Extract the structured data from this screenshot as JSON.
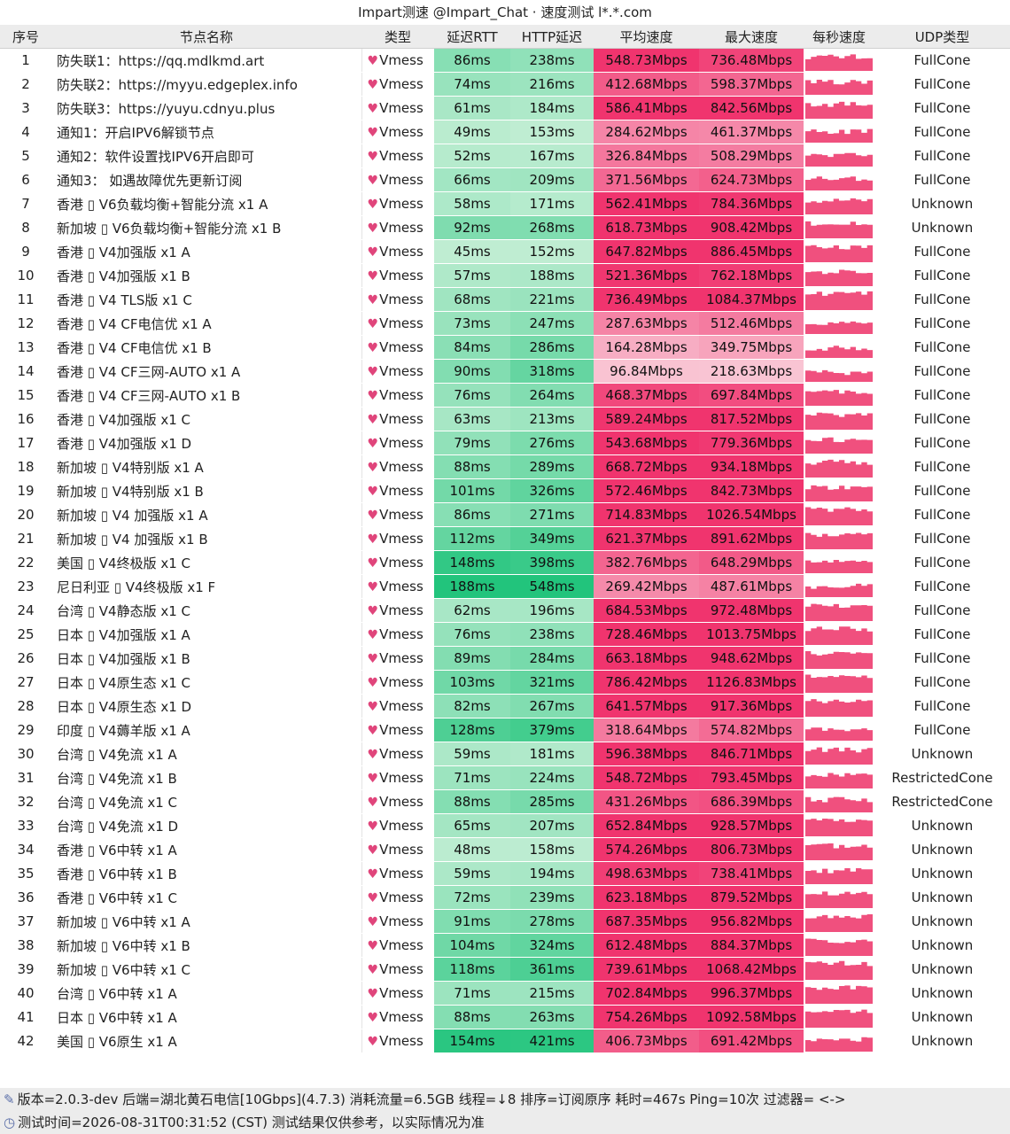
{
  "title": "Impart测速 @Impart_Chat · 速度测试 l*.*.com",
  "headers": [
    "序号",
    "节点名称",
    "类型",
    "延迟RTT",
    "HTTP延迟",
    "平均速度",
    "最大速度",
    "每秒速度",
    "UDP类型"
  ],
  "rows": [
    {
      "idx": "1",
      "name": "防失联1：https://qq.mdlkmd.art",
      "type": "Vmess",
      "rtt": "86ms",
      "http": "238ms",
      "avg": "548.73Mbps",
      "max": "736.48Mbps",
      "nat": "FullCone"
    },
    {
      "idx": "2",
      "name": "防失联2：https://myyu.edgeplex.info",
      "type": "Vmess",
      "rtt": "74ms",
      "http": "216ms",
      "avg": "412.68Mbps",
      "max": "598.37Mbps",
      "nat": "FullCone"
    },
    {
      "idx": "3",
      "name": "防失联3：https://yuyu.cdnyu.plus",
      "type": "Vmess",
      "rtt": "61ms",
      "http": "184ms",
      "avg": "586.41Mbps",
      "max": "842.56Mbps",
      "nat": "FullCone"
    },
    {
      "idx": "4",
      "name": "通知1：开启IPV6解锁节点",
      "type": "Vmess",
      "rtt": "49ms",
      "http": "153ms",
      "avg": "284.62Mbps",
      "max": "461.37Mbps",
      "nat": "FullCone"
    },
    {
      "idx": "5",
      "name": "通知2：软件设置找IPV6开启即可",
      "type": "Vmess",
      "rtt": "52ms",
      "http": "167ms",
      "avg": "326.84Mbps",
      "max": "508.29Mbps",
      "nat": "FullCone"
    },
    {
      "idx": "6",
      "name": "通知3： 如遇故障优先更新订阅",
      "type": "Vmess",
      "rtt": "66ms",
      "http": "209ms",
      "avg": "371.56Mbps",
      "max": "624.73Mbps",
      "nat": "FullCone"
    },
    {
      "idx": "7",
      "name": "香港 ▯ V6负载均衡+智能分流 x1 A",
      "type": "Vmess",
      "rtt": "58ms",
      "http": "171ms",
      "avg": "562.41Mbps",
      "max": "784.36Mbps",
      "nat": "Unknown"
    },
    {
      "idx": "8",
      "name": "新加坡 ▯ V6负载均衡+智能分流 x1 B",
      "type": "Vmess",
      "rtt": "92ms",
      "http": "268ms",
      "avg": "618.73Mbps",
      "max": "908.42Mbps",
      "nat": "Unknown"
    },
    {
      "idx": "9",
      "name": "香港 ▯ V4加强版 x1 A",
      "type": "Vmess",
      "rtt": "45ms",
      "http": "152ms",
      "avg": "647.82Mbps",
      "max": "886.45Mbps",
      "nat": "FullCone"
    },
    {
      "idx": "10",
      "name": "香港 ▯ V4加强版 x1 B",
      "type": "Vmess",
      "rtt": "57ms",
      "http": "188ms",
      "avg": "521.36Mbps",
      "max": "762.18Mbps",
      "nat": "FullCone"
    },
    {
      "idx": "11",
      "name": "香港 ▯ V4 TLS版 x1 C",
      "type": "Vmess",
      "rtt": "68ms",
      "http": "221ms",
      "avg": "736.49Mbps",
      "max": "1084.37Mbps",
      "nat": "FullCone"
    },
    {
      "idx": "12",
      "name": "香港 ▯ V4 CF电信优 x1 A",
      "type": "Vmess",
      "rtt": "73ms",
      "http": "247ms",
      "avg": "287.63Mbps",
      "max": "512.46Mbps",
      "nat": "FullCone"
    },
    {
      "idx": "13",
      "name": "香港 ▯ V4 CF电信优 x1 B",
      "type": "Vmess",
      "rtt": "84ms",
      "http": "286ms",
      "avg": "164.28Mbps",
      "max": "349.75Mbps",
      "nat": "FullCone"
    },
    {
      "idx": "14",
      "name": "香港 ▯ V4 CF三网-AUTO x1 A",
      "type": "Vmess",
      "rtt": "90ms",
      "http": "318ms",
      "avg": "96.84Mbps",
      "max": "218.63Mbps",
      "nat": "FullCone"
    },
    {
      "idx": "15",
      "name": "香港 ▯ V4 CF三网-AUTO x1 B",
      "type": "Vmess",
      "rtt": "76ms",
      "http": "264ms",
      "avg": "468.37Mbps",
      "max": "697.84Mbps",
      "nat": "FullCone"
    },
    {
      "idx": "16",
      "name": "香港 ▯ V4加强版 x1 C",
      "type": "Vmess",
      "rtt": "63ms",
      "http": "213ms",
      "avg": "589.24Mbps",
      "max": "817.52Mbps",
      "nat": "FullCone"
    },
    {
      "idx": "17",
      "name": "香港 ▯ V4加强版 x1 D",
      "type": "Vmess",
      "rtt": "79ms",
      "http": "276ms",
      "avg": "543.68Mbps",
      "max": "779.36Mbps",
      "nat": "FullCone"
    },
    {
      "idx": "18",
      "name": "新加坡 ▯ V4特别版 x1 A",
      "type": "Vmess",
      "rtt": "88ms",
      "http": "289ms",
      "avg": "668.72Mbps",
      "max": "934.18Mbps",
      "nat": "FullCone"
    },
    {
      "idx": "19",
      "name": "新加坡 ▯ V4特别版 x1 B",
      "type": "Vmess",
      "rtt": "101ms",
      "http": "326ms",
      "avg": "572.46Mbps",
      "max": "842.73Mbps",
      "nat": "FullCone"
    },
    {
      "idx": "20",
      "name": "新加坡 ▯ V4 加强版 x1 A",
      "type": "Vmess",
      "rtt": "86ms",
      "http": "271ms",
      "avg": "714.83Mbps",
      "max": "1026.54Mbps",
      "nat": "FullCone"
    },
    {
      "idx": "21",
      "name": "新加坡 ▯ V4 加强版 x1 B",
      "type": "Vmess",
      "rtt": "112ms",
      "http": "349ms",
      "avg": "621.37Mbps",
      "max": "891.62Mbps",
      "nat": "FullCone"
    },
    {
      "idx": "22",
      "name": "美国 ▯ V4终极版 x1 C",
      "type": "Vmess",
      "rtt": "148ms",
      "http": "398ms",
      "avg": "382.76Mbps",
      "max": "648.29Mbps",
      "nat": "FullCone"
    },
    {
      "idx": "23",
      "name": "尼日利亚 ▯ V4终极版 x1 F",
      "type": "Vmess",
      "rtt": "188ms",
      "http": "548ms",
      "avg": "269.42Mbps",
      "max": "487.61Mbps",
      "nat": "FullCone"
    },
    {
      "idx": "24",
      "name": "台湾 ▯ V4静态版 x1 C",
      "type": "Vmess",
      "rtt": "62ms",
      "http": "196ms",
      "avg": "684.53Mbps",
      "max": "972.48Mbps",
      "nat": "FullCone"
    },
    {
      "idx": "25",
      "name": "日本 ▯ V4加强版 x1 A",
      "type": "Vmess",
      "rtt": "76ms",
      "http": "238ms",
      "avg": "728.46Mbps",
      "max": "1013.75Mbps",
      "nat": "FullCone"
    },
    {
      "idx": "26",
      "name": "日本 ▯ V4加强版 x1 B",
      "type": "Vmess",
      "rtt": "89ms",
      "http": "284ms",
      "avg": "663.18Mbps",
      "max": "948.62Mbps",
      "nat": "FullCone"
    },
    {
      "idx": "27",
      "name": "日本 ▯ V4原生态 x1 C",
      "type": "Vmess",
      "rtt": "103ms",
      "http": "321ms",
      "avg": "786.42Mbps",
      "max": "1126.83Mbps",
      "nat": "FullCone"
    },
    {
      "idx": "28",
      "name": "日本 ▯ V4原生态 x1 D",
      "type": "Vmess",
      "rtt": "82ms",
      "http": "267ms",
      "avg": "641.57Mbps",
      "max": "917.36Mbps",
      "nat": "FullCone"
    },
    {
      "idx": "29",
      "name": "印度 ▯ V4薅羊版 x1 A",
      "type": "Vmess",
      "rtt": "128ms",
      "http": "379ms",
      "avg": "318.64Mbps",
      "max": "574.82Mbps",
      "nat": "FullCone"
    },
    {
      "idx": "30",
      "name": "台湾 ▯ V4免流 x1 A",
      "type": "Vmess",
      "rtt": "59ms",
      "http": "181ms",
      "avg": "596.38Mbps",
      "max": "846.71Mbps",
      "nat": "Unknown"
    },
    {
      "idx": "31",
      "name": "台湾 ▯ V4免流 x1 B",
      "type": "Vmess",
      "rtt": "71ms",
      "http": "224ms",
      "avg": "548.72Mbps",
      "max": "793.45Mbps",
      "nat": "RestrictedCone"
    },
    {
      "idx": "32",
      "name": "台湾 ▯ V4免流 x1 C",
      "type": "Vmess",
      "rtt": "88ms",
      "http": "285ms",
      "avg": "431.26Mbps",
      "max": "686.39Mbps",
      "nat": "RestrictedCone"
    },
    {
      "idx": "33",
      "name": "台湾 ▯ V4免流 x1 D",
      "type": "Vmess",
      "rtt": "65ms",
      "http": "207ms",
      "avg": "652.84Mbps",
      "max": "928.57Mbps",
      "nat": "Unknown"
    },
    {
      "idx": "34",
      "name": "香港 ▯ V6中转 x1 A",
      "type": "Vmess",
      "rtt": "48ms",
      "http": "158ms",
      "avg": "574.26Mbps",
      "max": "806.73Mbps",
      "nat": "Unknown"
    },
    {
      "idx": "35",
      "name": "香港 ▯ V6中转 x1 B",
      "type": "Vmess",
      "rtt": "59ms",
      "http": "194ms",
      "avg": "498.63Mbps",
      "max": "738.41Mbps",
      "nat": "Unknown"
    },
    {
      "idx": "36",
      "name": "香港 ▯ V6中转 x1 C",
      "type": "Vmess",
      "rtt": "72ms",
      "http": "239ms",
      "avg": "623.18Mbps",
      "max": "879.52Mbps",
      "nat": "Unknown"
    },
    {
      "idx": "37",
      "name": "新加坡 ▯ V6中转 x1 A",
      "type": "Vmess",
      "rtt": "91ms",
      "http": "278ms",
      "avg": "687.35Mbps",
      "max": "956.82Mbps",
      "nat": "Unknown"
    },
    {
      "idx": "38",
      "name": "新加坡 ▯ V6中转 x1 B",
      "type": "Vmess",
      "rtt": "104ms",
      "http": "324ms",
      "avg": "612.48Mbps",
      "max": "884.37Mbps",
      "nat": "Unknown"
    },
    {
      "idx": "39",
      "name": "新加坡 ▯ V6中转 x1 C",
      "type": "Vmess",
      "rtt": "118ms",
      "http": "361ms",
      "avg": "739.61Mbps",
      "max": "1068.42Mbps",
      "nat": "Unknown"
    },
    {
      "idx": "40",
      "name": "台湾 ▯ V6中转 x1 A",
      "type": "Vmess",
      "rtt": "71ms",
      "http": "215ms",
      "avg": "702.84Mbps",
      "max": "996.37Mbps",
      "nat": "Unknown"
    },
    {
      "idx": "41",
      "name": "日本 ▯ V6中转 x1 A",
      "type": "Vmess",
      "rtt": "88ms",
      "http": "263ms",
      "avg": "754.26Mbps",
      "max": "1092.58Mbps",
      "nat": "Unknown"
    },
    {
      "idx": "42",
      "name": "美国 ▯ V6原生 x1 A",
      "type": "Vmess",
      "rtt": "154ms",
      "http": "421ms",
      "avg": "406.73Mbps",
      "max": "691.42Mbps",
      "nat": "Unknown"
    }
  ],
  "footer": {
    "line1": "版本=2.0.3-dev  后端=湖北黄石电信[10Gbps](4.7.3) 消耗流量=6.5GB  线程=↓8  排序=订阅原序  耗时=467s  Ping=10次  过滤器= <->",
    "line2": "测试时间=2026-08-31T00:31:52 (CST)  测试结果仅供参考，以实际情况为准"
  },
  "icons": {
    "type_icon": "heart-icon",
    "footer1_icon": "pen-icon",
    "footer2_icon": "clock-icon"
  },
  "colors": {
    "header_bg": "#ececec",
    "green_scale": [
      "#c6efd6",
      "#22c47c"
    ],
    "red_scale": [
      "#f9c9d6",
      "#f0346e"
    ],
    "sparkline": "#f0507e"
  }
}
